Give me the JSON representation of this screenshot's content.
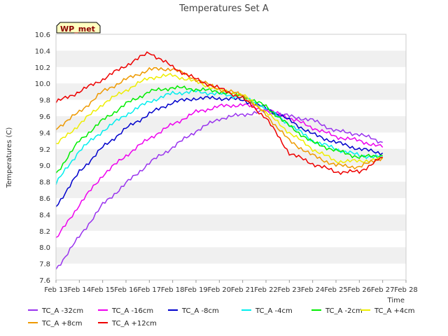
{
  "chart_data": {
    "type": "line",
    "title": "Temperatures Set A",
    "xlabel": "Time",
    "ylabel": "Temperatures (C)",
    "badge": "WP_met",
    "colors": {
      "badge_bg": "#ffffc0",
      "badge_text": "#8b0000",
      "band": "#f0f0f0"
    },
    "x_ticks": [
      "Feb 13",
      "Feb 14",
      "Feb 15",
      "Feb 16",
      "Feb 17",
      "Feb 18",
      "Feb 19",
      "Feb 20",
      "Feb 21",
      "Feb 22",
      "Feb 23",
      "Feb 24",
      "Feb 25",
      "Feb 26",
      "Feb 27",
      "Feb 28"
    ],
    "y_ticks": [
      "7.6",
      "7.8",
      "8.0",
      "8.2",
      "8.4",
      "8.6",
      "8.8",
      "9.0",
      "9.2",
      "9.4",
      "9.6",
      "9.8",
      "10.0",
      "10.2",
      "10.4",
      "10.6"
    ],
    "ylim": [
      7.6,
      10.6
    ],
    "xlim": [
      "Feb 13",
      "Feb 28"
    ],
    "grid": true,
    "legend_position": "bottom",
    "x": [
      "Feb 13",
      "Feb 14",
      "Feb 15",
      "Feb 16",
      "Feb 17",
      "Feb 18",
      "Feb 19",
      "Feb 20",
      "Feb 21",
      "Feb 22",
      "Feb 23",
      "Feb 24",
      "Feb 25",
      "Feb 26",
      "Feb 27"
    ],
    "series": [
      {
        "name": "TC_A -32cm",
        "color": "#9933ee",
        "values": [
          7.73,
          8.13,
          8.52,
          8.78,
          9.03,
          9.22,
          9.42,
          9.57,
          9.62,
          9.66,
          9.6,
          9.55,
          9.42,
          9.38,
          9.28
        ]
      },
      {
        "name": "TC_A -16cm",
        "color": "#ee00ee",
        "values": [
          8.1,
          8.52,
          8.88,
          9.12,
          9.33,
          9.5,
          9.65,
          9.72,
          9.74,
          9.68,
          9.58,
          9.46,
          9.35,
          9.3,
          9.22
        ]
      },
      {
        "name": "TC_A -8cm",
        "color": "#0000cc",
        "values": [
          8.5,
          8.92,
          9.22,
          9.45,
          9.63,
          9.77,
          9.82,
          9.82,
          9.8,
          9.7,
          9.55,
          9.38,
          9.28,
          9.2,
          9.15
        ]
      },
      {
        "name": "TC_A -4cm",
        "color": "#00eeee",
        "values": [
          8.78,
          9.18,
          9.42,
          9.62,
          9.78,
          9.88,
          9.9,
          9.87,
          9.83,
          9.7,
          9.5,
          9.3,
          9.2,
          9.12,
          9.1
        ]
      },
      {
        "name": "TC_A -2cm",
        "color": "#00ee00",
        "values": [
          8.9,
          9.3,
          9.55,
          9.75,
          9.9,
          9.95,
          9.93,
          9.9,
          9.85,
          9.72,
          9.48,
          9.28,
          9.18,
          9.1,
          9.12
        ]
      },
      {
        "name": "TC_A +4cm",
        "color": "#eeee00",
        "values": [
          9.25,
          9.5,
          9.75,
          9.92,
          10.07,
          10.1,
          10.02,
          9.92,
          9.86,
          9.65,
          9.4,
          9.2,
          9.05,
          9.05,
          9.08
        ]
      },
      {
        "name": "TC_A +8cm",
        "color": "#ee9900",
        "values": [
          9.45,
          9.65,
          9.9,
          10.05,
          10.17,
          10.18,
          10.05,
          9.93,
          9.86,
          9.62,
          9.3,
          9.12,
          9.0,
          8.98,
          9.1
        ]
      },
      {
        "name": "TC_A +12cm",
        "color": "#ee0000",
        "values": [
          9.77,
          9.9,
          10.05,
          10.22,
          10.38,
          10.2,
          10.05,
          9.94,
          9.82,
          9.58,
          9.15,
          9.02,
          8.92,
          8.92,
          9.1
        ]
      }
    ]
  }
}
